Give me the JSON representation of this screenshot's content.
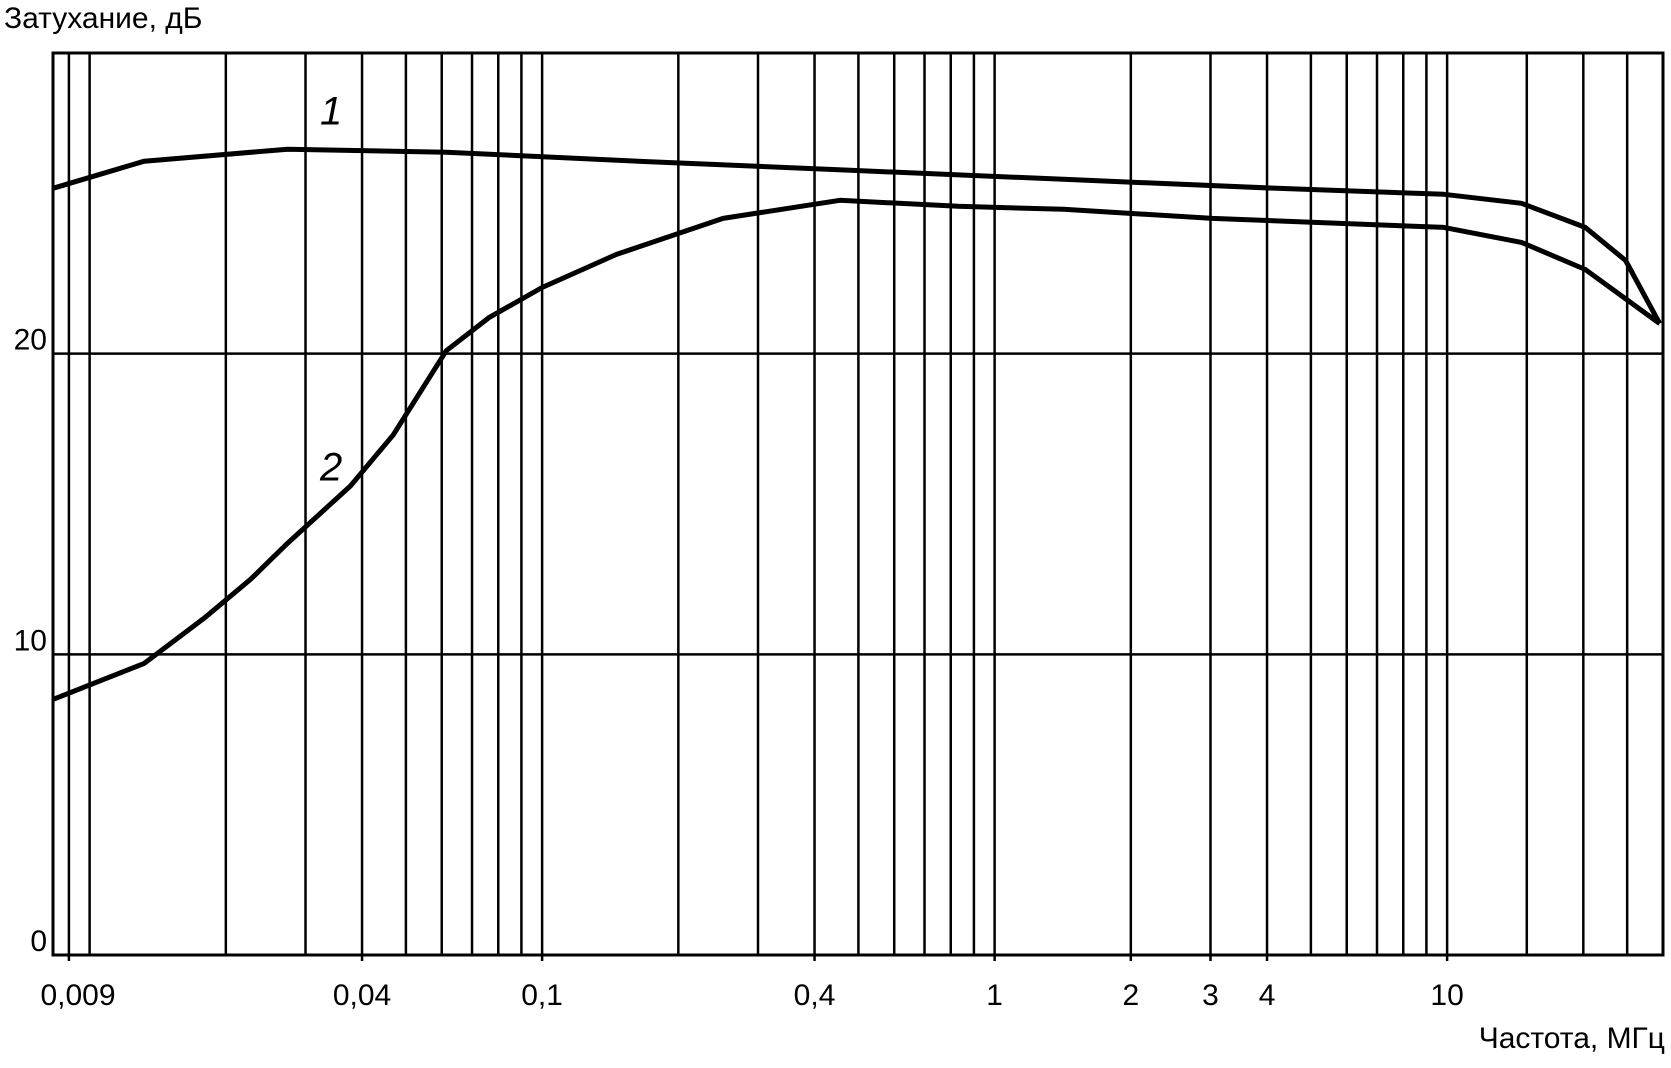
{
  "chart_data": {
    "type": "line",
    "ylabel": "Затухание, дБ",
    "xlabel": "Частота, МГц",
    "xscale": "log",
    "xlim": [
      0.0083,
      30
    ],
    "ylim": [
      0,
      30
    ],
    "xticks": [
      {
        "value": 0.009,
        "label": "0,009"
      },
      {
        "value": 0.04,
        "label": "0,04"
      },
      {
        "value": 0.1,
        "label": "0,1"
      },
      {
        "value": 0.4,
        "label": "0,4"
      },
      1,
      2,
      3,
      4,
      10
    ],
    "xgrid": [
      0.009,
      0.01,
      0.02,
      0.03,
      0.04,
      0.05,
      0.06,
      0.07,
      0.08,
      0.09,
      0.1,
      0.2,
      0.3,
      0.4,
      0.5,
      0.6,
      0.7,
      0.8,
      0.9,
      1,
      2,
      3,
      4,
      5,
      6,
      7,
      8,
      9,
      10,
      15,
      20,
      25
    ],
    "yticks": [
      0,
      10,
      20
    ],
    "grid": true,
    "series": [
      {
        "name": "1",
        "color": "#000000",
        "x": [
          0.0083,
          0.0132,
          0.0274,
          0.0614,
          0.163,
          0.48,
          1.42,
          4.2,
          9.84,
          14.6,
          20.2,
          24.8,
          29.5
        ],
        "values": [
          25.5,
          26.4,
          26.8,
          26.7,
          26.4,
          26.1,
          25.8,
          25.5,
          25.3,
          25.0,
          24.2,
          23.1,
          21.0
        ]
      },
      {
        "name": "2",
        "color": "#000000",
        "x": [
          0.0083,
          0.0132,
          0.0179,
          0.0227,
          0.0274,
          0.0377,
          0.0469,
          0.0614,
          0.0763,
          0.1,
          0.146,
          0.251,
          0.455,
          0.83,
          1.42,
          3.03,
          9.84,
          14.6,
          20.2,
          29.5
        ],
        "values": [
          8.5,
          9.7,
          11.2,
          12.5,
          13.7,
          15.6,
          17.3,
          20.1,
          21.2,
          22.2,
          23.3,
          24.5,
          25.1,
          24.9,
          24.8,
          24.5,
          24.2,
          23.7,
          22.8,
          21.0
        ]
      }
    ]
  }
}
